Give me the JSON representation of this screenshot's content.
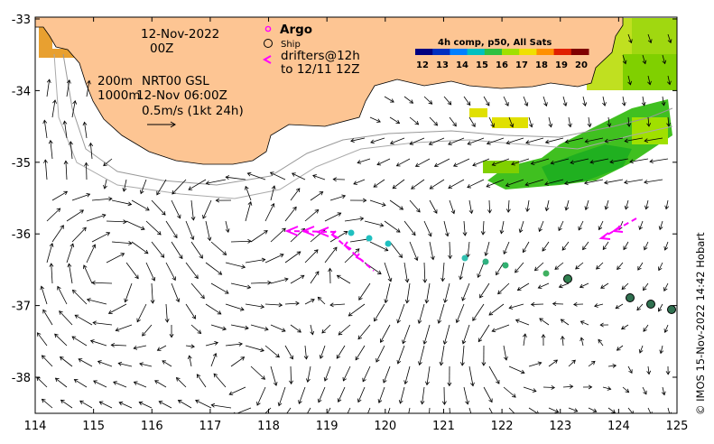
{
  "map": {
    "lon_ticks": [
      "114",
      "115",
      "116",
      "117",
      "118",
      "119",
      "120",
      "121",
      "122",
      "123",
      "124",
      "125"
    ],
    "lat_ticks": [
      "-33",
      "-34",
      "-35",
      "-36",
      "-37",
      "-38"
    ],
    "annotations": {
      "date": "12-Nov-2022",
      "hour": "00Z",
      "depth_200": "200m",
      "depth_1000": "1000m",
      "product": "NRT00 GSL",
      "product_time": "12-Nov 06:00Z",
      "scale": "0.5m/s (1kt 24h)"
    },
    "legend": {
      "argo": "Argo",
      "ship": "Ship",
      "drifters": "drifters@12h",
      "drifters_to": "to 12/11 12Z"
    },
    "colorbar": {
      "title": "4h comp, p50, All Sats",
      "labels": [
        "12",
        "13",
        "14",
        "15",
        "16",
        "17",
        "18",
        "19",
        "20"
      ],
      "colors": [
        "#000080",
        "#0030c0",
        "#0080ff",
        "#00c0c0",
        "#30c040",
        "#a0e000",
        "#f0e000",
        "#ff9000",
        "#e02000",
        "#800000"
      ]
    },
    "credit": "© IMOS 15-Nov-2022 14:42 Hobart",
    "colors": {
      "land": "#fdc593",
      "arrow": "#000000",
      "drifter": "#ff00ff",
      "float": "#20c0c0"
    }
  }
}
